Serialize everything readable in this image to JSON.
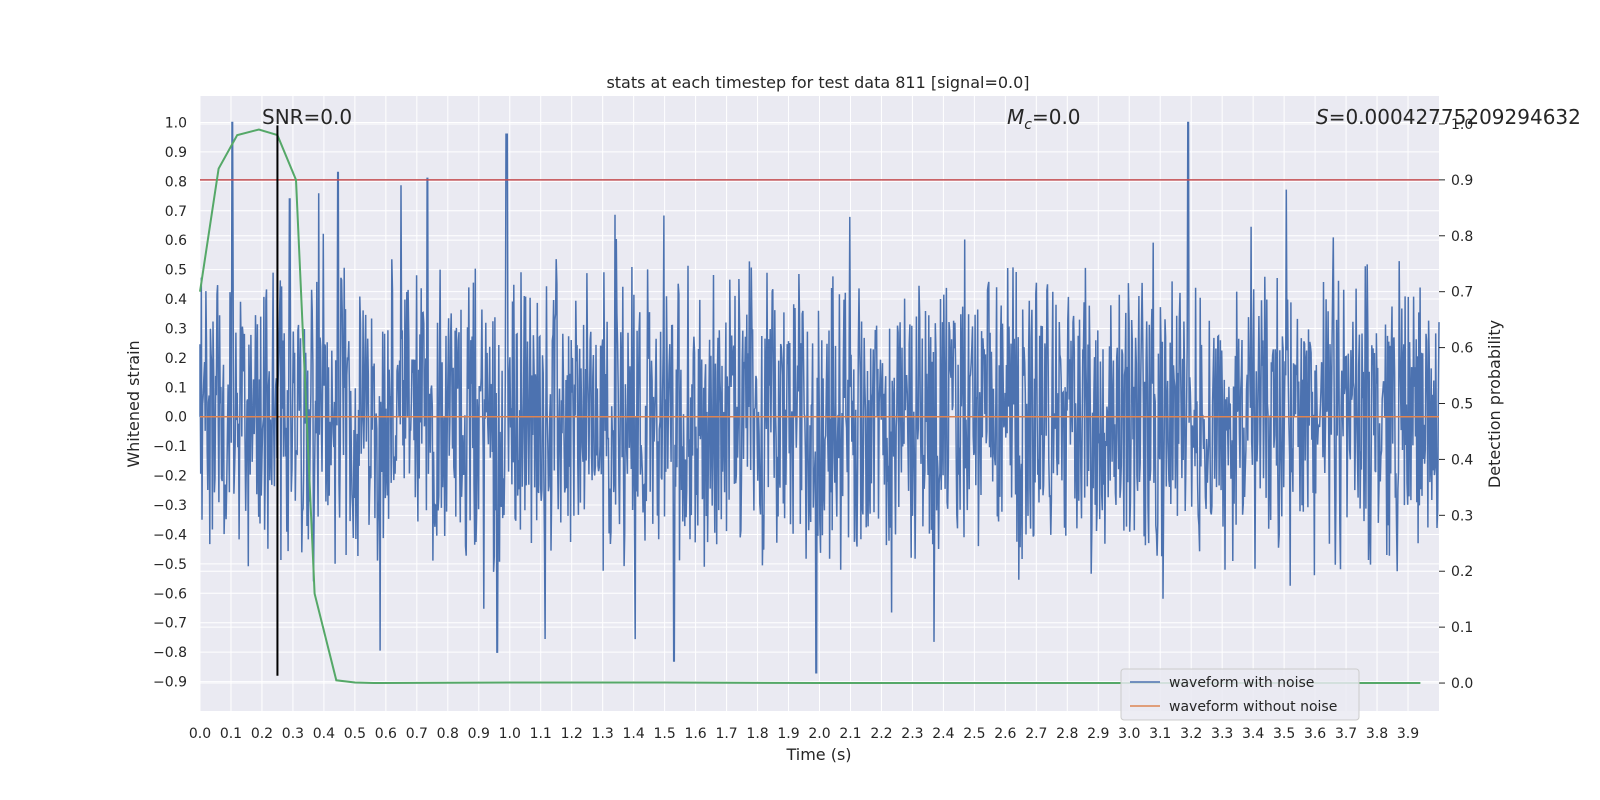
{
  "chart_data": {
    "type": "line",
    "title": "stats at each timestep for test data 811 [signal=0.0]",
    "xlabel": "Time (s)",
    "ylabel": "Whitened strain",
    "y2label": "Detection probability",
    "xlim": [
      0.0,
      4.0
    ],
    "ylim": [
      -1.0,
      1.09
    ],
    "y2lim": [
      -0.05,
      1.05
    ],
    "x_ticks": [
      0.0,
      0.1,
      0.2,
      0.3,
      0.4,
      0.5,
      0.6,
      0.7,
      0.8,
      0.9,
      1.0,
      1.1,
      1.2,
      1.3,
      1.4,
      1.5,
      1.6,
      1.7,
      1.8,
      1.9,
      2.0,
      2.1,
      2.2,
      2.3,
      2.4,
      2.5,
      2.6,
      2.7,
      2.8,
      2.9,
      3.0,
      3.1,
      3.2,
      3.3,
      3.4,
      3.5,
      3.6,
      3.7,
      3.8,
      3.9
    ],
    "y_ticks": [
      1.0,
      0.9,
      0.8,
      0.7,
      0.6,
      0.5,
      0.4,
      0.3,
      0.2,
      0.1,
      0.0,
      -0.1,
      -0.2,
      -0.3,
      -0.4,
      -0.5,
      -0.6,
      -0.7,
      -0.8,
      -0.9
    ],
    "y2_ticks": [
      1.0,
      0.9,
      0.8,
      0.7,
      0.6,
      0.5,
      0.4,
      0.3,
      0.2,
      0.1,
      0.0
    ],
    "grid": true,
    "legend_position": "bottom-right",
    "colors": {
      "noisy": "#4c72b0",
      "clean": "#dd8452",
      "prob": "#55a868",
      "threshold": "#c44e52",
      "marker": "#000000",
      "background": "#eaeaf2",
      "grid": "#ffffff"
    },
    "annotations": {
      "snr": "SNR=0.0",
      "mc_symbol": "M",
      "mc_sub": "c",
      "mc_value": "=0.0",
      "s_symbol": "S",
      "s_value": "=0.00042775209294632"
    },
    "series": [
      {
        "name": "waveform with noise",
        "kind": "noise-strain",
        "peaks": [
          {
            "x": 0.105,
            "y": 1.0
          },
          {
            "x": 0.99,
            "y": 0.96
          },
          {
            "x": 3.19,
            "y": 1.0
          },
          {
            "x": 0.445,
            "y": 0.83
          },
          {
            "x": 0.735,
            "y": 0.81
          },
          {
            "x": 0.29,
            "y": 0.74
          },
          {
            "x": 1.99,
            "y": -0.87
          },
          {
            "x": 1.53,
            "y": -0.83
          },
          {
            "x": 0.96,
            "y": -0.8
          }
        ]
      },
      {
        "name": "waveform without noise",
        "x": [
          0.0,
          4.0
        ],
        "y": [
          0.0,
          0.0
        ]
      },
      {
        "name": "detection probability",
        "axis": "right",
        "x": [
          0.0,
          0.06,
          0.12,
          0.19,
          0.25,
          0.31,
          0.37,
          0.44,
          0.5,
          0.56,
          1.0,
          1.5,
          2.0,
          2.5,
          3.0,
          3.5,
          3.94
        ],
        "y": [
          0.7,
          0.92,
          0.98,
          0.99,
          0.98,
          0.9,
          0.16,
          0.005,
          0.001,
          0.0,
          0.001,
          0.001,
          0.0,
          0.0,
          0.0,
          0.0,
          0.0
        ]
      }
    ],
    "threshold_y2": 0.9,
    "marker_x": 0.25,
    "marker_y_range": [
      -0.88,
      0.99
    ]
  }
}
